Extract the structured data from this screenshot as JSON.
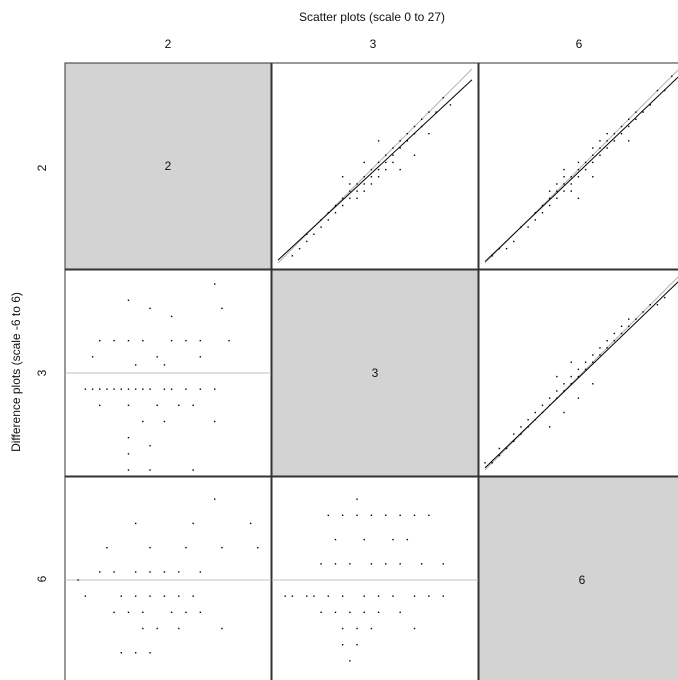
{
  "chart_data": {
    "type": "scatter",
    "title": "Scatter plots (scale 0 to 27)",
    "ylabel": "Difference plots (scale -6 to 6)",
    "variables": [
      "2",
      "3",
      "6"
    ],
    "scatter_range": [
      0,
      27
    ],
    "difference_range": [
      -6,
      6
    ],
    "grid": false,
    "colors": {
      "diagonal_fill": "#d3d3d3",
      "points": "#000000",
      "fit_line": "#000000",
      "identity_line": "#b4b4b4",
      "zero_line": "#c0c0c0",
      "border": "#333333"
    },
    "panels": [
      {
        "row": "2",
        "col": "3",
        "kind": "scatter",
        "fit_line": [
          [
            0,
            0.4
          ],
          [
            27,
            25.5
          ]
        ],
        "identity_line": [
          [
            0,
            0
          ],
          [
            27,
            27
          ]
        ],
        "points": [
          [
            2,
            1
          ],
          [
            3,
            2
          ],
          [
            4,
            3
          ],
          [
            4,
            4
          ],
          [
            5,
            4
          ],
          [
            6,
            5
          ],
          [
            6,
            6
          ],
          [
            7,
            6
          ],
          [
            7,
            7
          ],
          [
            8,
            7
          ],
          [
            8,
            8
          ],
          [
            9,
            8
          ],
          [
            9,
            9
          ],
          [
            10,
            9
          ],
          [
            10,
            10
          ],
          [
            10,
            11
          ],
          [
            11,
            9
          ],
          [
            11,
            10
          ],
          [
            11,
            11
          ],
          [
            12,
            10
          ],
          [
            12,
            11
          ],
          [
            12,
            12
          ],
          [
            13,
            11
          ],
          [
            13,
            12
          ],
          [
            13,
            13
          ],
          [
            14,
            12
          ],
          [
            14,
            13
          ],
          [
            14,
            14
          ],
          [
            15,
            13
          ],
          [
            15,
            14
          ],
          [
            15,
            15
          ],
          [
            16,
            14
          ],
          [
            16,
            15
          ],
          [
            16,
            16
          ],
          [
            17,
            16
          ],
          [
            17,
            17
          ],
          [
            18,
            17
          ],
          [
            18,
            18
          ],
          [
            19,
            18
          ],
          [
            19,
            19
          ],
          [
            20,
            19
          ],
          [
            20,
            20
          ],
          [
            21,
            21
          ],
          [
            22,
            21
          ],
          [
            23,
            23
          ],
          [
            24,
            22
          ],
          [
            21,
            18
          ],
          [
            19,
            15
          ],
          [
            17,
            13
          ],
          [
            14,
            17
          ],
          [
            12,
            14
          ],
          [
            9,
            12
          ]
        ]
      },
      {
        "row": "2",
        "col": "6",
        "kind": "scatter",
        "fit_line": [
          [
            0,
            0.2
          ],
          [
            27,
            26
          ]
        ],
        "identity_line": [
          [
            0,
            0
          ],
          [
            27,
            27
          ]
        ],
        "points": [
          [
            1,
            1
          ],
          [
            2,
            2
          ],
          [
            3,
            2
          ],
          [
            4,
            3
          ],
          [
            5,
            5
          ],
          [
            6,
            5
          ],
          [
            7,
            6
          ],
          [
            7,
            7
          ],
          [
            8,
            7
          ],
          [
            8,
            8
          ],
          [
            9,
            8
          ],
          [
            9,
            9
          ],
          [
            9,
            10
          ],
          [
            10,
            9
          ],
          [
            10,
            10
          ],
          [
            10,
            11
          ],
          [
            11,
            10
          ],
          [
            11,
            11
          ],
          [
            11,
            12
          ],
          [
            12,
            10
          ],
          [
            12,
            11
          ],
          [
            12,
            12
          ],
          [
            13,
            12
          ],
          [
            13,
            13
          ],
          [
            13,
            14
          ],
          [
            14,
            13
          ],
          [
            14,
            14
          ],
          [
            15,
            14
          ],
          [
            15,
            15
          ],
          [
            15,
            16
          ],
          [
            16,
            15
          ],
          [
            16,
            16
          ],
          [
            16,
            17
          ],
          [
            17,
            16
          ],
          [
            17,
            17
          ],
          [
            17,
            18
          ],
          [
            18,
            17
          ],
          [
            18,
            18
          ],
          [
            19,
            18
          ],
          [
            19,
            19
          ],
          [
            20,
            19
          ],
          [
            20,
            20
          ],
          [
            21,
            20
          ],
          [
            21,
            21
          ],
          [
            22,
            21
          ],
          [
            23,
            22
          ],
          [
            24,
            24
          ],
          [
            25,
            24
          ],
          [
            26,
            26
          ],
          [
            15,
            12
          ],
          [
            13,
            9
          ],
          [
            11,
            13
          ],
          [
            20,
            17
          ]
        ]
      },
      {
        "row": "3",
        "col": "6",
        "kind": "scatter",
        "fit_line": [
          [
            0,
            0.3
          ],
          [
            27,
            26.3
          ]
        ],
        "identity_line": [
          [
            0,
            0
          ],
          [
            27,
            27
          ]
        ],
        "points": [
          [
            0,
            1
          ],
          [
            1,
            1
          ],
          [
            2,
            2
          ],
          [
            2,
            3
          ],
          [
            3,
            3
          ],
          [
            4,
            4
          ],
          [
            4,
            5
          ],
          [
            5,
            5
          ],
          [
            5,
            6
          ],
          [
            6,
            6
          ],
          [
            6,
            7
          ],
          [
            7,
            7
          ],
          [
            7,
            8
          ],
          [
            8,
            8
          ],
          [
            8,
            9
          ],
          [
            9,
            9
          ],
          [
            9,
            10
          ],
          [
            10,
            10
          ],
          [
            10,
            11
          ],
          [
            11,
            11
          ],
          [
            11,
            12
          ],
          [
            12,
            12
          ],
          [
            12,
            13
          ],
          [
            13,
            13
          ],
          [
            13,
            14
          ],
          [
            14,
            14
          ],
          [
            14,
            15
          ],
          [
            15,
            15
          ],
          [
            15,
            16
          ],
          [
            16,
            16
          ],
          [
            16,
            17
          ],
          [
            17,
            17
          ],
          [
            17,
            18
          ],
          [
            18,
            18
          ],
          [
            18,
            19
          ],
          [
            19,
            19
          ],
          [
            19,
            20
          ],
          [
            20,
            20
          ],
          [
            20,
            21
          ],
          [
            21,
            21
          ],
          [
            22,
            22
          ],
          [
            23,
            23
          ],
          [
            24,
            23
          ],
          [
            25,
            24
          ],
          [
            9,
            6
          ],
          [
            11,
            8
          ],
          [
            13,
            10
          ],
          [
            15,
            12
          ],
          [
            10,
            13
          ],
          [
            12,
            15
          ]
        ]
      },
      {
        "row": "3",
        "col": "2",
        "kind": "difference",
        "zero_line": 0,
        "points": [
          [
            8,
            4.5
          ],
          [
            11,
            4
          ],
          [
            14,
            3.5
          ],
          [
            20,
            5.5
          ],
          [
            21,
            4
          ],
          [
            4,
            2
          ],
          [
            6,
            2
          ],
          [
            8,
            2
          ],
          [
            10,
            2
          ],
          [
            14,
            2
          ],
          [
            16,
            2
          ],
          [
            18,
            2
          ],
          [
            22,
            2
          ],
          [
            3,
            1
          ],
          [
            12,
            1
          ],
          [
            18,
            1
          ],
          [
            9,
            0.5
          ],
          [
            13,
            0.5
          ],
          [
            2,
            -1
          ],
          [
            3,
            -1
          ],
          [
            4,
            -1
          ],
          [
            5,
            -1
          ],
          [
            6,
            -1
          ],
          [
            7,
            -1
          ],
          [
            8,
            -1
          ],
          [
            9,
            -1
          ],
          [
            10,
            -1
          ],
          [
            11,
            -1
          ],
          [
            13,
            -1
          ],
          [
            14,
            -1
          ],
          [
            16,
            -1
          ],
          [
            18,
            -1
          ],
          [
            20,
            -1
          ],
          [
            4,
            -2
          ],
          [
            8,
            -2
          ],
          [
            12,
            -2
          ],
          [
            15,
            -2
          ],
          [
            17,
            -2
          ],
          [
            10,
            -3
          ],
          [
            13,
            -3
          ],
          [
            20,
            -3
          ],
          [
            8,
            -4
          ],
          [
            11,
            -4.5
          ],
          [
            8,
            -5
          ],
          [
            8,
            -6
          ],
          [
            11,
            -6
          ],
          [
            17,
            -6
          ]
        ]
      },
      {
        "row": "6",
        "col": "2",
        "kind": "difference",
        "zero_line": 0,
        "points": [
          [
            20,
            5
          ],
          [
            25,
            3.5
          ],
          [
            9,
            3.5
          ],
          [
            17,
            3.5
          ],
          [
            5,
            2
          ],
          [
            11,
            2
          ],
          [
            16,
            2
          ],
          [
            21,
            2
          ],
          [
            26,
            2
          ],
          [
            4,
            0.5
          ],
          [
            6,
            0.5
          ],
          [
            9,
            0.5
          ],
          [
            11,
            0.5
          ],
          [
            13,
            0.5
          ],
          [
            15,
            0.5
          ],
          [
            18,
            0.5
          ],
          [
            1,
            0
          ],
          [
            2,
            -1
          ],
          [
            7,
            -1
          ],
          [
            9,
            -1
          ],
          [
            11,
            -1
          ],
          [
            13,
            -1
          ],
          [
            15,
            -1
          ],
          [
            17,
            -1
          ],
          [
            6,
            -2
          ],
          [
            8,
            -2
          ],
          [
            10,
            -2
          ],
          [
            14,
            -2
          ],
          [
            16,
            -2
          ],
          [
            18,
            -2
          ],
          [
            10,
            -3
          ],
          [
            12,
            -3
          ],
          [
            15,
            -3
          ],
          [
            21,
            -3
          ],
          [
            7,
            -4.5
          ],
          [
            9,
            -4.5
          ],
          [
            11,
            -4.5
          ]
        ]
      },
      {
        "row": "6",
        "col": "3",
        "kind": "difference",
        "zero_line": 0,
        "points": [
          [
            11,
            5
          ],
          [
            7,
            4
          ],
          [
            9,
            4
          ],
          [
            11,
            4
          ],
          [
            13,
            4
          ],
          [
            15,
            4
          ],
          [
            17,
            4
          ],
          [
            19,
            4
          ],
          [
            21,
            4
          ],
          [
            8,
            2.5
          ],
          [
            12,
            2.5
          ],
          [
            16,
            2.5
          ],
          [
            18,
            2.5
          ],
          [
            6,
            1
          ],
          [
            8,
            1
          ],
          [
            10,
            1
          ],
          [
            13,
            1
          ],
          [
            15,
            1
          ],
          [
            17,
            1
          ],
          [
            20,
            1
          ],
          [
            23,
            1
          ],
          [
            1,
            -1
          ],
          [
            2,
            -1
          ],
          [
            4,
            -1
          ],
          [
            5,
            -1
          ],
          [
            7,
            -1
          ],
          [
            9,
            -1
          ],
          [
            12,
            -1
          ],
          [
            14,
            -1
          ],
          [
            16,
            -1
          ],
          [
            19,
            -1
          ],
          [
            21,
            -1
          ],
          [
            23,
            -1
          ],
          [
            6,
            -2
          ],
          [
            8,
            -2
          ],
          [
            10,
            -2
          ],
          [
            12,
            -2
          ],
          [
            14,
            -2
          ],
          [
            17,
            -2
          ],
          [
            9,
            -3
          ],
          [
            11,
            -3
          ],
          [
            13,
            -3
          ],
          [
            19,
            -3
          ],
          [
            9,
            -4
          ],
          [
            11,
            -4
          ],
          [
            10,
            -5
          ]
        ]
      }
    ]
  }
}
